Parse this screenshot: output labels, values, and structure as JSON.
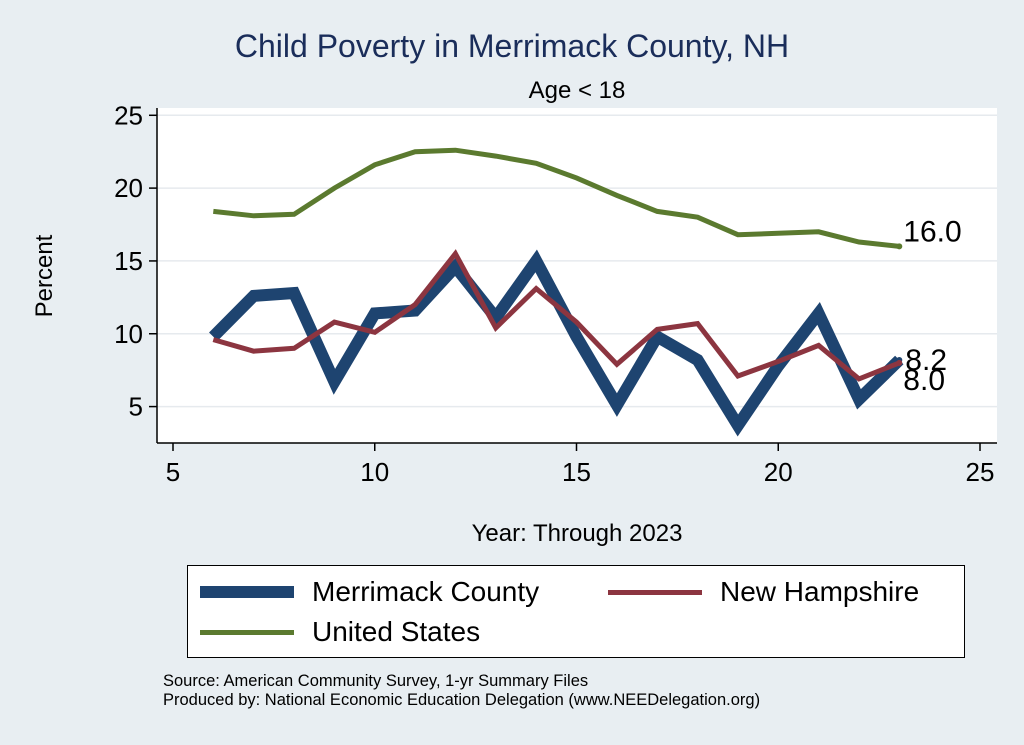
{
  "chart_data": {
    "type": "line",
    "title": "Child Poverty in Merrimack County, NH",
    "subtitle": "Age < 18",
    "xlabel": "Year: Through 2023",
    "ylabel": "Percent",
    "xlim": [
      5,
      25
    ],
    "ylim": [
      2.5,
      25.5
    ],
    "xticks": [
      5,
      10,
      15,
      20,
      25
    ],
    "yticks": [
      5,
      10,
      15,
      20,
      25
    ],
    "grid": true,
    "series": [
      {
        "name": "Merrimack County",
        "color": "#1e4470",
        "x": [
          6,
          7,
          8,
          9,
          10,
          11,
          12,
          13,
          14,
          15,
          16,
          17,
          18,
          19,
          20,
          21,
          22,
          23
        ],
        "values": [
          9.8,
          12.6,
          12.8,
          6.7,
          11.4,
          11.6,
          14.6,
          11.1,
          15.0,
          9.8,
          5.1,
          9.8,
          8.2,
          3.7,
          7.8,
          11.4,
          5.5,
          8.2
        ],
        "end_label": "8.2"
      },
      {
        "name": "New Hampshire",
        "color": "#8c3540",
        "x": [
          6,
          7,
          8,
          9,
          10,
          11,
          12,
          13,
          14,
          15,
          16,
          17,
          18,
          19,
          20,
          21,
          22,
          23
        ],
        "values": [
          9.6,
          8.8,
          9.0,
          10.8,
          10.1,
          12.0,
          15.5,
          10.4,
          13.1,
          10.8,
          7.9,
          10.3,
          10.7,
          7.1,
          8.1,
          9.2,
          6.9,
          8.0
        ],
        "end_label": "8.0"
      },
      {
        "name": "United States",
        "color": "#5b7a2f",
        "x": [
          6,
          7,
          8,
          9,
          10,
          11,
          12,
          13,
          14,
          15,
          16,
          17,
          18,
          19,
          20,
          21,
          22,
          23
        ],
        "values": [
          18.4,
          18.1,
          18.2,
          20.0,
          21.6,
          22.5,
          22.6,
          22.2,
          21.7,
          20.7,
          19.5,
          18.4,
          18.0,
          16.8,
          16.9,
          17.0,
          16.3,
          16.0
        ],
        "end_label": "16.0"
      }
    ],
    "legend": {
      "position": "bottom",
      "entries": [
        "Merrimack County",
        "New Hampshire",
        "United States"
      ]
    }
  },
  "footer": {
    "source": "Source: American Community Survey, 1-yr Summary Files",
    "produced_by": "Produced by: National Economic Education Delegation (www.NEEDelegation.org)"
  }
}
